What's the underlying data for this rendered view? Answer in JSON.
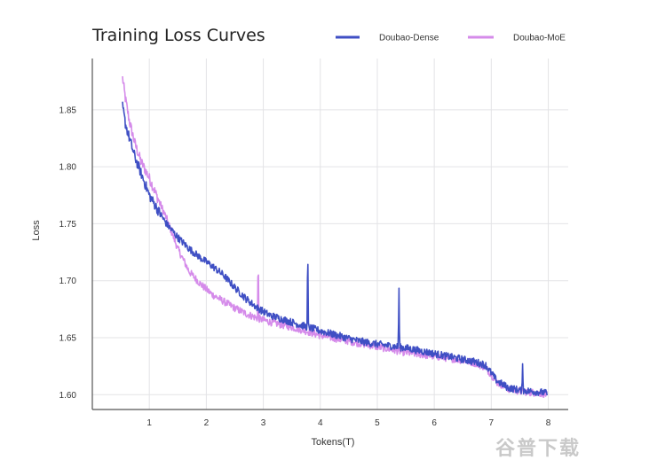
{
  "chart_data": {
    "type": "line",
    "title": "Training Loss Curves",
    "xlabel": "Tokens(T)",
    "ylabel": "Loss",
    "xlim": [
      0,
      8.35
    ],
    "ylim": [
      1.587,
      1.895
    ],
    "xticks": [
      1,
      2,
      3,
      4,
      5,
      6,
      7,
      8
    ],
    "yticks": [
      1.6,
      1.65,
      1.7,
      1.75,
      1.8,
      1.85
    ],
    "ytick_labels": [
      "1.60",
      "1.65",
      "1.70",
      "1.75",
      "1.80",
      "1.85"
    ],
    "grid": true,
    "legend_position": "top-right",
    "series": [
      {
        "name": "Doubao-Dense",
        "color": "#3f4fc4",
        "x": [
          0.53,
          0.58,
          0.65,
          0.75,
          0.85,
          1.0,
          1.15,
          1.3,
          1.5,
          1.7,
          1.9,
          2.1,
          2.3,
          2.5,
          2.7,
          2.9,
          3.1,
          3.35,
          3.6,
          3.8,
          4.0,
          4.3,
          4.6,
          4.9,
          5.2,
          5.5,
          5.8,
          6.1,
          6.4,
          6.7,
          6.9,
          7.1,
          7.3,
          7.5,
          7.7,
          7.9,
          7.98
        ],
        "y": [
          1.853,
          1.838,
          1.825,
          1.808,
          1.795,
          1.775,
          1.762,
          1.75,
          1.738,
          1.728,
          1.72,
          1.713,
          1.705,
          1.694,
          1.684,
          1.676,
          1.67,
          1.666,
          1.662,
          1.659,
          1.656,
          1.652,
          1.648,
          1.645,
          1.643,
          1.641,
          1.638,
          1.635,
          1.632,
          1.629,
          1.626,
          1.612,
          1.606,
          1.604,
          1.603,
          1.602,
          1.601
        ]
      },
      {
        "name": "Doubao-MoE",
        "color": "#d58bea",
        "x": [
          0.53,
          0.58,
          0.65,
          0.75,
          0.85,
          1.0,
          1.15,
          1.3,
          1.5,
          1.7,
          1.9,
          2.1,
          2.3,
          2.5,
          2.7,
          2.9,
          3.1,
          3.35,
          3.6,
          3.8,
          4.0,
          4.3,
          4.6,
          4.9,
          5.2,
          5.5,
          5.8,
          6.1,
          6.4,
          6.7,
          6.9,
          7.1,
          7.3,
          7.5,
          7.7,
          7.9,
          7.98
        ],
        "y": [
          1.878,
          1.86,
          1.84,
          1.82,
          1.805,
          1.79,
          1.772,
          1.755,
          1.728,
          1.708,
          1.697,
          1.688,
          1.682,
          1.676,
          1.671,
          1.667,
          1.664,
          1.661,
          1.658,
          1.655,
          1.652,
          1.649,
          1.646,
          1.643,
          1.64,
          1.637,
          1.635,
          1.633,
          1.631,
          1.628,
          1.624,
          1.611,
          1.605,
          1.603,
          1.602,
          1.601,
          1.6
        ]
      }
    ],
    "spikes": [
      {
        "series": 0,
        "x": 3.78,
        "y": 1.734
      },
      {
        "series": 0,
        "x": 5.38,
        "y": 1.697
      },
      {
        "series": 0,
        "x": 7.55,
        "y": 1.628
      },
      {
        "series": 1,
        "x": 2.91,
        "y": 1.724
      }
    ]
  },
  "watermark": "谷普下载"
}
